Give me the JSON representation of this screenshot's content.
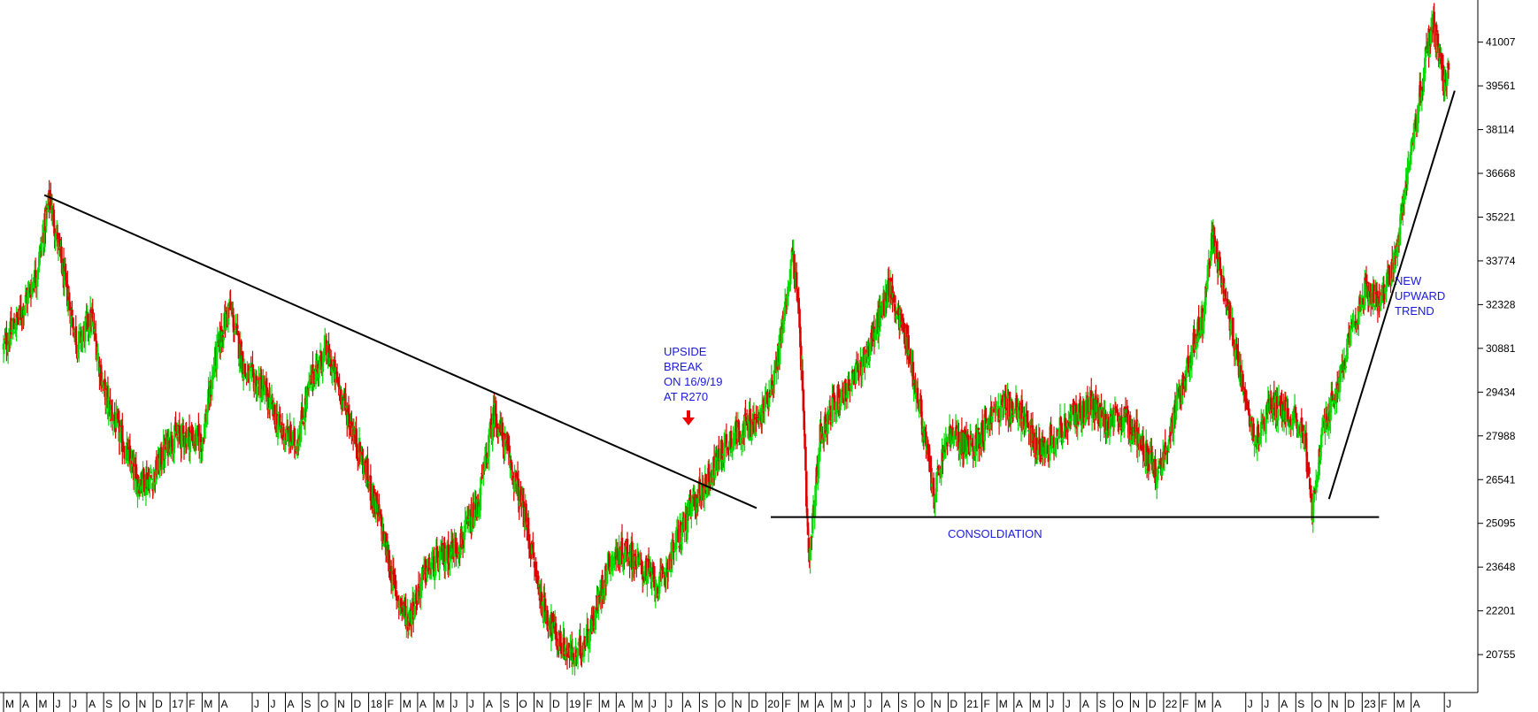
{
  "chart_data": {
    "type": "candlestick",
    "title": "",
    "xlabel": "",
    "ylabel": "",
    "x_range": [
      "2016-03-01",
      "2023-06-30"
    ],
    "ylim": [
      19500,
      42400
    ],
    "grid": false,
    "legend": "none",
    "y_axis_position": "right",
    "colors": {
      "up": "#00dd00",
      "down": "#dd0000",
      "line": "#000000",
      "annotation": "#1a1adc",
      "arrow": "#ee0000"
    },
    "y_ticks": [
      "41007",
      "39561",
      "38114",
      "36668",
      "35221",
      "33774",
      "32328",
      "30881",
      "29434",
      "27988",
      "26541",
      "25095",
      "23648",
      "22201",
      "20755"
    ],
    "x_ticks": [
      {
        "label": "M",
        "date": "2016-03-01"
      },
      {
        "label": "A",
        "date": "2016-04-01"
      },
      {
        "label": "M",
        "date": "2016-05-01"
      },
      {
        "label": "J",
        "date": "2016-06-01"
      },
      {
        "label": "J",
        "date": "2016-07-01"
      },
      {
        "label": "A",
        "date": "2016-08-01"
      },
      {
        "label": "S",
        "date": "2016-09-01"
      },
      {
        "label": "O",
        "date": "2016-10-01"
      },
      {
        "label": "N",
        "date": "2016-11-01"
      },
      {
        "label": "D",
        "date": "2016-12-01"
      },
      {
        "label": "17",
        "date": "2017-01-01"
      },
      {
        "label": "F",
        "date": "2017-02-01"
      },
      {
        "label": "M",
        "date": "2017-03-01"
      },
      {
        "label": "A",
        "date": "2017-04-01"
      },
      {
        "label": "J",
        "date": "2017-06-01"
      },
      {
        "label": "J",
        "date": "2017-07-01"
      },
      {
        "label": "A",
        "date": "2017-08-01"
      },
      {
        "label": "S",
        "date": "2017-09-01"
      },
      {
        "label": "O",
        "date": "2017-10-01"
      },
      {
        "label": "N",
        "date": "2017-11-01"
      },
      {
        "label": "D",
        "date": "2017-12-01"
      },
      {
        "label": "18",
        "date": "2018-01-01"
      },
      {
        "label": "F",
        "date": "2018-02-01"
      },
      {
        "label": "M",
        "date": "2018-03-01"
      },
      {
        "label": "A",
        "date": "2018-04-01"
      },
      {
        "label": "M",
        "date": "2018-05-01"
      },
      {
        "label": "J",
        "date": "2018-06-01"
      },
      {
        "label": "J",
        "date": "2018-07-01"
      },
      {
        "label": "A",
        "date": "2018-08-01"
      },
      {
        "label": "S",
        "date": "2018-09-01"
      },
      {
        "label": "O",
        "date": "2018-10-01"
      },
      {
        "label": "N",
        "date": "2018-11-01"
      },
      {
        "label": "D",
        "date": "2018-12-01"
      },
      {
        "label": "19",
        "date": "2019-01-01"
      },
      {
        "label": "F",
        "date": "2019-02-01"
      },
      {
        "label": "M",
        "date": "2019-03-01"
      },
      {
        "label": "A",
        "date": "2019-04-01"
      },
      {
        "label": "M",
        "date": "2019-05-01"
      },
      {
        "label": "J",
        "date": "2019-06-01"
      },
      {
        "label": "J",
        "date": "2019-07-01"
      },
      {
        "label": "A",
        "date": "2019-08-01"
      },
      {
        "label": "S",
        "date": "2019-09-01"
      },
      {
        "label": "O",
        "date": "2019-10-01"
      },
      {
        "label": "N",
        "date": "2019-11-01"
      },
      {
        "label": "D",
        "date": "2019-12-01"
      },
      {
        "label": "20",
        "date": "2020-01-01"
      },
      {
        "label": "F",
        "date": "2020-02-01"
      },
      {
        "label": "M",
        "date": "2020-03-01"
      },
      {
        "label": "A",
        "date": "2020-04-01"
      },
      {
        "label": "M",
        "date": "2020-05-01"
      },
      {
        "label": "J",
        "date": "2020-06-01"
      },
      {
        "label": "J",
        "date": "2020-07-01"
      },
      {
        "label": "A",
        "date": "2020-08-01"
      },
      {
        "label": "S",
        "date": "2020-09-01"
      },
      {
        "label": "O",
        "date": "2020-10-01"
      },
      {
        "label": "N",
        "date": "2020-11-01"
      },
      {
        "label": "D",
        "date": "2020-12-01"
      },
      {
        "label": "21",
        "date": "2021-01-01"
      },
      {
        "label": "F",
        "date": "2021-02-01"
      },
      {
        "label": "M",
        "date": "2021-03-01"
      },
      {
        "label": "A",
        "date": "2021-04-01"
      },
      {
        "label": "M",
        "date": "2021-05-01"
      },
      {
        "label": "J",
        "date": "2021-06-01"
      },
      {
        "label": "J",
        "date": "2021-07-01"
      },
      {
        "label": "A",
        "date": "2021-08-01"
      },
      {
        "label": "S",
        "date": "2021-09-01"
      },
      {
        "label": "O",
        "date": "2021-10-01"
      },
      {
        "label": "N",
        "date": "2021-11-01"
      },
      {
        "label": "D",
        "date": "2021-12-01"
      },
      {
        "label": "22",
        "date": "2022-01-01"
      },
      {
        "label": "F",
        "date": "2022-02-01"
      },
      {
        "label": "M",
        "date": "2022-03-01"
      },
      {
        "label": "A",
        "date": "2022-04-01"
      },
      {
        "label": "J",
        "date": "2022-06-01"
      },
      {
        "label": "J",
        "date": "2022-07-01"
      },
      {
        "label": "A",
        "date": "2022-08-01"
      },
      {
        "label": "S",
        "date": "2022-09-01"
      },
      {
        "label": "O",
        "date": "2022-10-01"
      },
      {
        "label": "N",
        "date": "2022-11-01"
      },
      {
        "label": "D",
        "date": "2022-12-01"
      },
      {
        "label": "23",
        "date": "2023-01-01"
      },
      {
        "label": "F",
        "date": "2023-02-01"
      },
      {
        "label": "M",
        "date": "2023-03-01"
      },
      {
        "label": "A",
        "date": "2023-04-01"
      },
      {
        "label": "J",
        "date": "2023-06-01"
      }
    ],
    "price_path": [
      [
        "2016-03-01",
        30900
      ],
      [
        "2016-04-01",
        32000
      ],
      [
        "2016-05-01",
        33400
      ],
      [
        "2016-05-25",
        35900
      ],
      [
        "2016-06-20",
        33200
      ],
      [
        "2016-07-15",
        31000
      ],
      [
        "2016-08-10",
        31900
      ],
      [
        "2016-09-01",
        29500
      ],
      [
        "2016-10-01",
        28000
      ],
      [
        "2016-11-01",
        26500
      ],
      [
        "2016-12-01",
        26600
      ],
      [
        "2017-01-01",
        27900
      ],
      [
        "2017-02-01",
        28000
      ],
      [
        "2017-03-01",
        27800
      ],
      [
        "2017-03-25",
        30500
      ],
      [
        "2017-04-20",
        32300
      ],
      [
        "2017-05-20",
        30000
      ],
      [
        "2017-06-20",
        29600
      ],
      [
        "2017-07-20",
        28300
      ],
      [
        "2017-08-20",
        27700
      ],
      [
        "2017-09-20",
        30000
      ],
      [
        "2017-10-15",
        30800
      ],
      [
        "2017-11-15",
        29200
      ],
      [
        "2017-12-20",
        27200
      ],
      [
        "2018-01-20",
        25300
      ],
      [
        "2018-02-20",
        22800
      ],
      [
        "2018-03-15",
        21900
      ],
      [
        "2018-04-15",
        23500
      ],
      [
        "2018-05-20",
        24000
      ],
      [
        "2018-06-20",
        24500
      ],
      [
        "2018-07-20",
        25600
      ],
      [
        "2018-08-20",
        28800
      ],
      [
        "2018-09-20",
        27000
      ],
      [
        "2018-10-15",
        25300
      ],
      [
        "2018-11-15",
        22500
      ],
      [
        "2018-12-15",
        21200
      ],
      [
        "2019-01-15",
        20600
      ],
      [
        "2019-02-15",
        21700
      ],
      [
        "2019-03-20",
        23900
      ],
      [
        "2019-04-20",
        24200
      ],
      [
        "2019-05-20",
        23600
      ],
      [
        "2019-06-20",
        23000
      ],
      [
        "2019-07-20",
        24500
      ],
      [
        "2019-08-20",
        25700
      ],
      [
        "2019-09-16",
        26500
      ],
      [
        "2019-10-15",
        27600
      ],
      [
        "2019-11-15",
        28200
      ],
      [
        "2019-12-20",
        28500
      ],
      [
        "2020-01-20",
        30200
      ],
      [
        "2020-02-20",
        34100
      ],
      [
        "2020-03-05",
        31000
      ],
      [
        "2020-03-20",
        23600
      ],
      [
        "2020-04-10",
        28000
      ],
      [
        "2020-05-10",
        29200
      ],
      [
        "2020-06-10",
        29800
      ],
      [
        "2020-07-15",
        31200
      ],
      [
        "2020-08-15",
        32900
      ],
      [
        "2020-09-15",
        31200
      ],
      [
        "2020-10-15",
        28400
      ],
      [
        "2020-11-05",
        26000
      ],
      [
        "2020-12-01",
        28000
      ],
      [
        "2021-01-15",
        27600
      ],
      [
        "2021-02-15",
        28600
      ],
      [
        "2021-03-15",
        29000
      ],
      [
        "2021-04-15",
        28700
      ],
      [
        "2021-05-15",
        27500
      ],
      [
        "2021-06-15",
        28000
      ],
      [
        "2021-07-20",
        28600
      ],
      [
        "2021-08-20",
        29000
      ],
      [
        "2021-09-20",
        28400
      ],
      [
        "2021-10-20",
        28500
      ],
      [
        "2021-11-20",
        27900
      ],
      [
        "2021-12-20",
        26600
      ],
      [
        "2022-01-20",
        28600
      ],
      [
        "2022-02-15",
        30400
      ],
      [
        "2022-03-15",
        32000
      ],
      [
        "2022-04-01",
        34600
      ],
      [
        "2022-04-20",
        32900
      ],
      [
        "2022-05-20",
        30300
      ],
      [
        "2022-06-20",
        27800
      ],
      [
        "2022-07-15",
        29000
      ],
      [
        "2022-08-15",
        28800
      ],
      [
        "2022-09-15",
        28300
      ],
      [
        "2022-10-01",
        25500
      ],
      [
        "2022-10-20",
        28000
      ],
      [
        "2022-11-15",
        29600
      ],
      [
        "2022-12-05",
        30800
      ],
      [
        "2023-01-05",
        32800
      ],
      [
        "2023-02-05",
        32500
      ],
      [
        "2023-03-01",
        33600
      ],
      [
        "2023-03-25",
        36700
      ],
      [
        "2023-04-20",
        39500
      ],
      [
        "2023-05-10",
        41700
      ],
      [
        "2023-06-01",
        39600
      ],
      [
        "2023-06-10",
        40200
      ]
    ],
    "lines": [
      {
        "name": "downtrend",
        "from": [
          "2016-05-15",
          35950
        ],
        "to": [
          "2019-12-15",
          25600
        ]
      },
      {
        "name": "support",
        "from": [
          "2020-01-10",
          25300
        ],
        "to": [
          "2023-02-01",
          25300
        ]
      },
      {
        "name": "uptrend",
        "from": [
          "2022-11-01",
          25900
        ],
        "to": [
          "2023-06-20",
          39400
        ]
      }
    ],
    "annotations": [
      {
        "lines": [
          "UPSIDE",
          "BREAK",
          "ON 16/9/19",
          "AT R270"
        ]
      },
      {
        "lines": [
          "CONSOLDIATION"
        ]
      },
      {
        "lines": [
          "NEW",
          "UPWARD",
          "TREND"
        ]
      }
    ]
  }
}
